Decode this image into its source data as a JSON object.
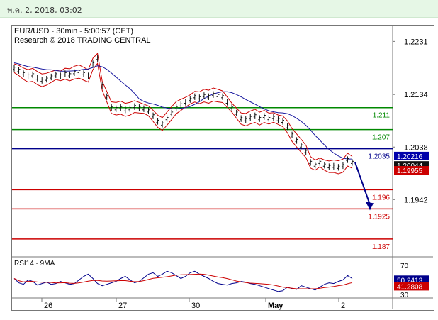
{
  "header": {
    "timestamp": "พ.ค. 2, 2018, 03:02"
  },
  "chart_data": {
    "type": "line",
    "title": "EUR/USD - 30min - 5:00:57 (CET)",
    "subtitle": "Research © 2018 TRADING CENTRAL",
    "price_axis": {
      "ylim": [
        1.184,
        1.226
      ],
      "ticks": [
        "1.2231",
        "1.2134",
        "1.2038",
        "1.1942"
      ]
    },
    "x_tick_labels": [
      "26",
      "27",
      "30",
      "May",
      "2"
    ],
    "levels": [
      {
        "label": "1.211",
        "value": 1.211,
        "color": "#008800"
      },
      {
        "label": "1.207",
        "value": 1.207,
        "color": "#008800"
      },
      {
        "label": "1.2035",
        "value": 1.2035,
        "color": "#00008b"
      },
      {
        "label": "1.196",
        "value": 1.196,
        "color": "#cc0000"
      },
      {
        "label": "1.1925",
        "value": 1.1925,
        "color": "#cc0000"
      },
      {
        "label": "1.187",
        "value": 1.187,
        "color": "#cc0000"
      }
    ],
    "price_tags": [
      {
        "label": "1.20216",
        "value": 1.20216,
        "bg": "#0000aa"
      },
      {
        "label": "1.20044",
        "value": 1.20044,
        "bg": "#111111"
      },
      {
        "label": "1.19955",
        "value": 1.19955,
        "bg": "#cc0000"
      }
    ],
    "price_series": [
      1.2182,
      1.2178,
      1.2172,
      1.2168,
      1.217,
      1.2164,
      1.216,
      1.2162,
      1.2166,
      1.217,
      1.2168,
      1.2172,
      1.217,
      1.2174,
      1.2176,
      1.2172,
      1.2168,
      1.219,
      1.22,
      1.215,
      1.213,
      1.211,
      1.2108,
      1.211,
      1.2106,
      1.2108,
      1.2112,
      1.211,
      1.2108,
      1.2104,
      1.2095,
      1.2085,
      1.208,
      1.209,
      1.21,
      1.211,
      1.2115,
      1.212,
      1.2125,
      1.213,
      1.2128,
      1.2132,
      1.213,
      1.2134,
      1.2132,
      1.213,
      1.212,
      1.211,
      1.21,
      1.209,
      1.2088,
      1.2092,
      1.2095,
      1.209,
      1.2094,
      1.209,
      1.2092,
      1.2088,
      1.2085,
      1.2075,
      1.206,
      1.205,
      1.204,
      1.203,
      1.201,
      1.2005,
      1.201,
      1.2005,
      1.2002,
      1.2003,
      1.2001,
      1.2004,
      1.2015,
      1.201
    ],
    "forecast_arrow": {
      "from": 1.201,
      "to": 1.1925
    },
    "rsi": {
      "label": "RSI14 - 9MA",
      "ylim": [
        25,
        80
      ],
      "ticks": [
        "70",
        "30"
      ],
      "tags": [
        {
          "label": "50.2413",
          "value": 50.2413,
          "bg": "#00008b"
        },
        {
          "label": "41.2808",
          "value": 41.2808,
          "bg": "#cc0000"
        }
      ],
      "series": [
        52,
        46,
        44,
        50,
        48,
        43,
        45,
        47,
        44,
        45,
        48,
        46,
        44,
        45,
        50,
        55,
        58,
        52,
        45,
        42,
        44,
        46,
        48,
        52,
        55,
        50,
        46,
        48,
        53,
        58,
        60,
        55,
        58,
        62,
        60,
        56,
        52,
        55,
        60,
        62,
        58,
        55,
        52,
        48,
        45,
        44,
        43,
        45,
        46,
        48,
        47,
        45,
        44,
        42,
        40,
        38,
        36,
        34,
        35,
        40,
        38,
        37,
        42,
        40,
        38,
        36,
        40,
        44,
        46,
        45,
        48,
        50,
        56,
        52
      ]
    }
  }
}
